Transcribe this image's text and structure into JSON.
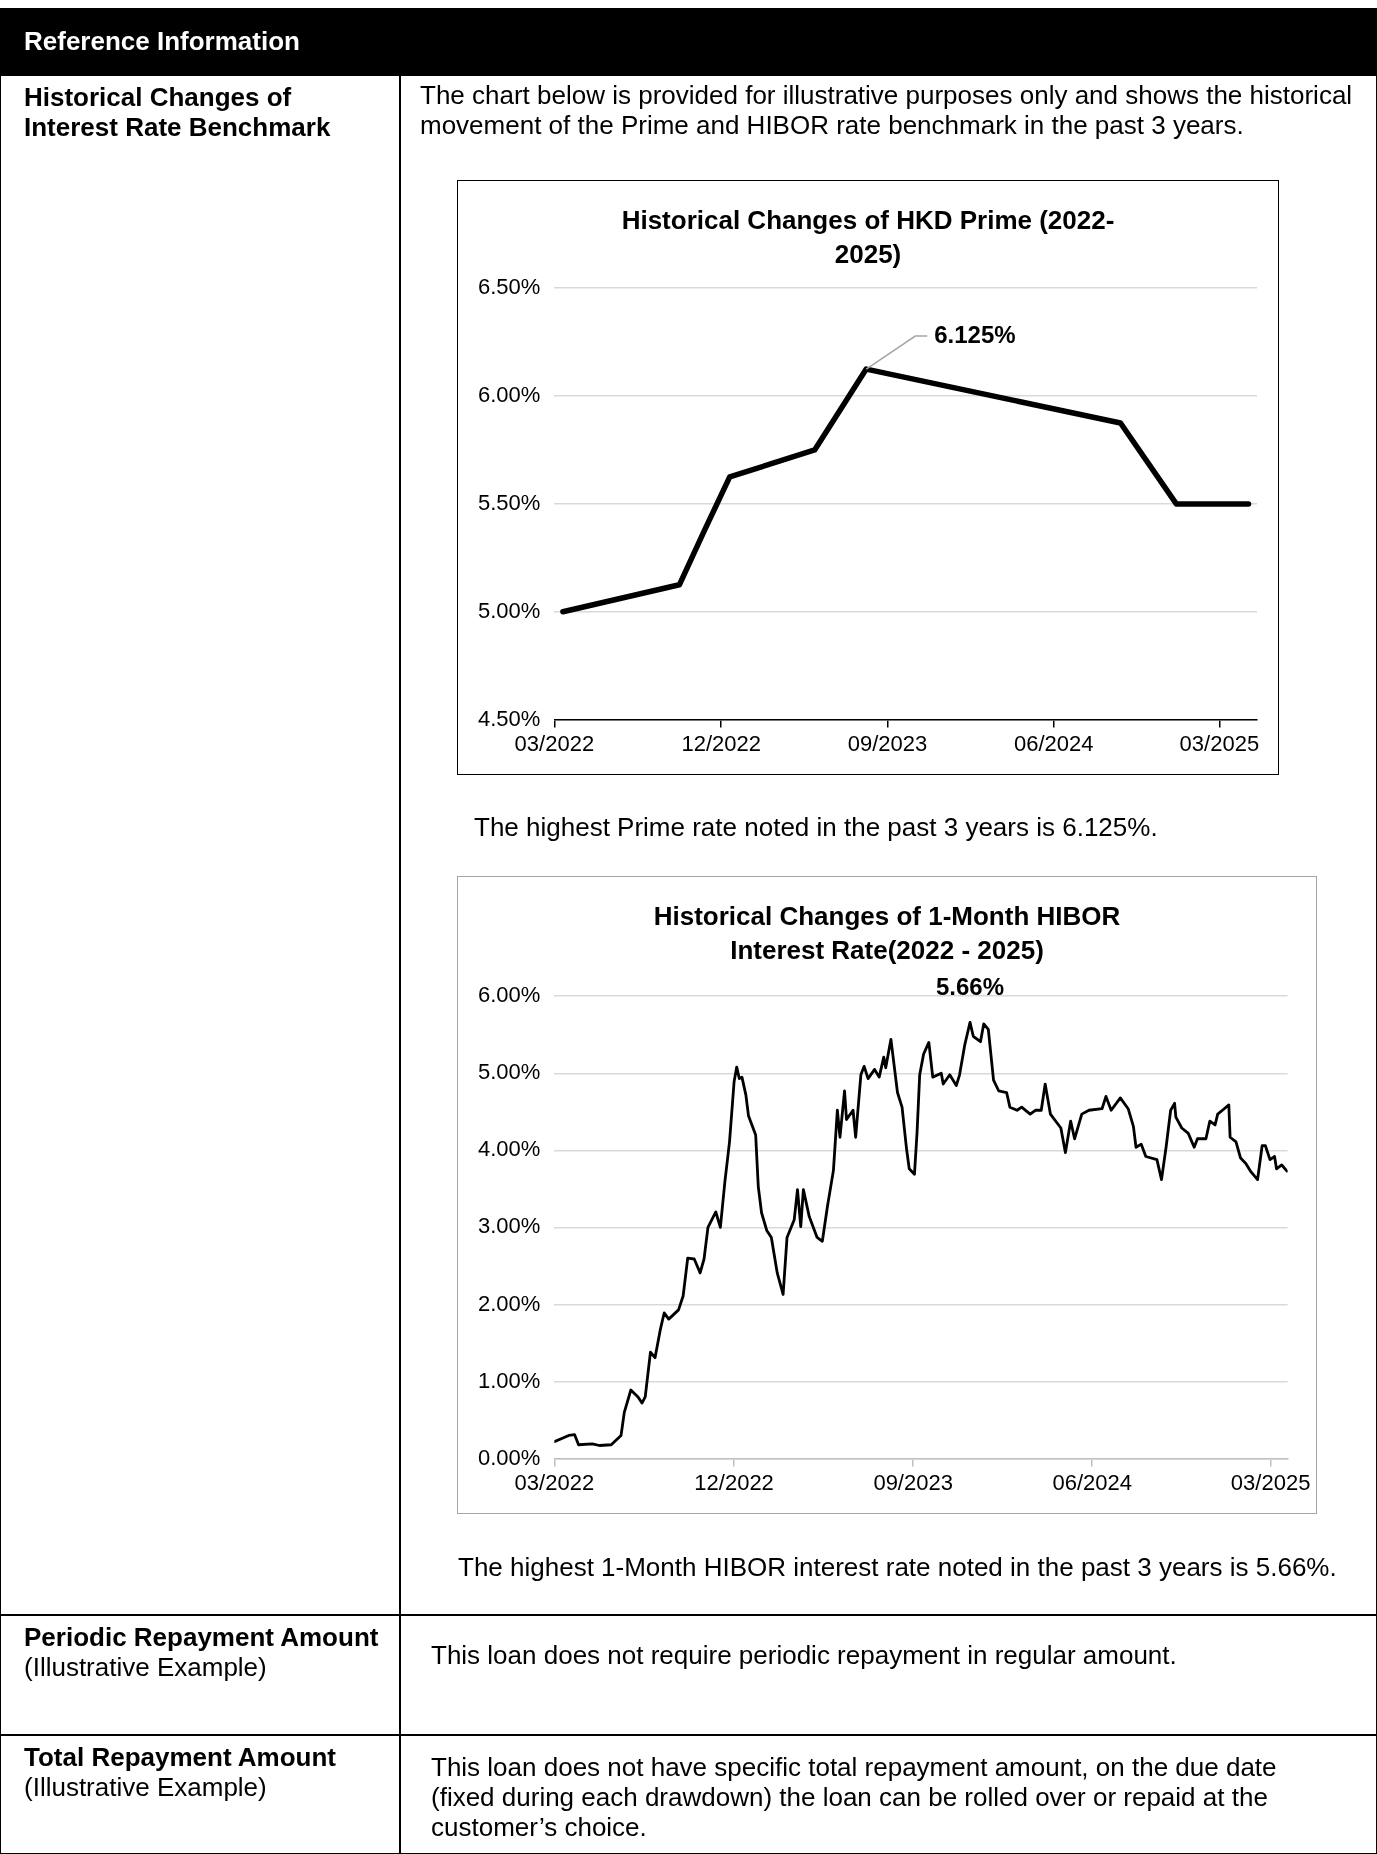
{
  "chart_data": [
    {
      "type": "line",
      "title": "Historical Changes of HKD Prime (2022-2025)",
      "x": [
        "2022-03-15",
        "2022-09-23",
        "2022-11-03",
        "2022-12-15",
        "2023-05-04",
        "2023-07-28",
        "2024-09-19",
        "2024-12-20",
        "2025-04-18"
      ],
      "series": [
        {
          "color": "#000000",
          "values": [
            5.0,
            5.125,
            5.375,
            5.625,
            5.75,
            6.125,
            5.875,
            5.5,
            5.5
          ]
        }
      ],
      "xlim": [
        "2022-03-01",
        "2025-05-02"
      ],
      "xticks": [
        {
          "value": "2022-03-01",
          "label": "03/2022"
        },
        {
          "value": "2022-12-01",
          "label": "12/2022"
        },
        {
          "value": "2023-09-01",
          "label": "09/2023"
        },
        {
          "value": "2024-06-01",
          "label": "06/2024"
        },
        {
          "value": "2025-03-01",
          "label": "03/2025"
        }
      ],
      "ylim": [
        4.5,
        6.5
      ],
      "yticks": [
        {
          "value": 4.5,
          "label": "4.50%"
        },
        {
          "value": 5.0,
          "label": "5.00%"
        },
        {
          "value": 5.5,
          "label": "5.50%"
        },
        {
          "value": 6.0,
          "label": "6.00%"
        },
        {
          "value": 6.5,
          "label": "6.50%"
        }
      ],
      "grid": "y",
      "annotations": [
        "Reference Information",
        "Historical Changes of Interest Rate Benchmark",
        "The chart below is provided for illustrative purposes only and shows the historical movement of the Prime and HIBOR rate benchmark in the past 3 years.",
        {
          "text": "6.125%",
          "x": "2023-07-28",
          "y": 6.125
        },
        "The highest Prime rate noted in the past 3 years is 6.125%."
      ]
    },
    {
      "type": "line",
      "title": "Historical Changes of 1-Month HIBOR Interest Rate(2022 - 2025)",
      "x": [
        "2022-03-01",
        "2022-03-23",
        "2022-04-01",
        "2022-04-07",
        "2022-04-28",
        "2022-05-09",
        "2022-05-27",
        "2022-06-11",
        "2022-06-16",
        "2022-06-26",
        "2022-07-07",
        "2022-07-13",
        "2022-07-18",
        "2022-07-26",
        "2022-08-02",
        "2022-08-10",
        "2022-08-16",
        "2022-08-23",
        "2022-09-07",
        "2022-09-14",
        "2022-09-21",
        "2022-10-01",
        "2022-10-10",
        "2022-10-16",
        "2022-10-22",
        "2022-11-03",
        "2022-11-10",
        "2022-11-17",
        "2022-11-24",
        "2022-12-01",
        "2022-12-05",
        "2022-12-09",
        "2022-12-13",
        "2022-12-19",
        "2022-12-23",
        "2023-01-03",
        "2023-01-07",
        "2023-01-12",
        "2023-01-20",
        "2023-01-27",
        "2023-02-05",
        "2023-02-14",
        "2023-02-20",
        "2023-03-03",
        "2023-03-08",
        "2023-03-13",
        "2023-03-17",
        "2023-03-26",
        "2023-04-07",
        "2023-04-15",
        "2023-04-23",
        "2023-05-02",
        "2023-05-08",
        "2023-05-12",
        "2023-05-19",
        "2023-05-22",
        "2023-06-01",
        "2023-06-05",
        "2023-06-13",
        "2023-06-18",
        "2023-06-24",
        "2023-07-04",
        "2023-07-11",
        "2023-07-18",
        "2023-07-21",
        "2023-07-29",
        "2023-08-08",
        "2023-08-15",
        "2023-08-22",
        "2023-08-26",
        "2023-09-03",
        "2023-09-07",
        "2023-09-11",
        "2023-09-17",
        "2023-09-25",
        "2023-10-01",
        "2023-10-14",
        "2023-10-17",
        "2023-10-27",
        "2023-11-06",
        "2023-11-11",
        "2023-11-19",
        "2023-11-27",
        "2023-12-02",
        "2023-12-13",
        "2023-12-18",
        "2023-12-25",
        "2024-01-02",
        "2024-01-10",
        "2024-01-22",
        "2024-01-27",
        "2024-02-07",
        "2024-02-14",
        "2024-02-27",
        "2024-03-06",
        "2024-03-15",
        "2024-03-21",
        "2024-03-29",
        "2024-04-14",
        "2024-04-21",
        "2024-04-29",
        "2024-05-05",
        "2024-05-16",
        "2024-05-27",
        "2024-06-16",
        "2024-06-22",
        "2024-06-30",
        "2024-07-14",
        "2024-07-26",
        "2024-08-03",
        "2024-08-07",
        "2024-08-15",
        "2024-08-22",
        "2024-09-08",
        "2024-09-15",
        "2024-09-22",
        "2024-09-29",
        "2024-10-05",
        "2024-10-07",
        "2024-10-16",
        "2024-10-26",
        "2024-11-04",
        "2024-11-09",
        "2024-11-22",
        "2024-11-28",
        "2024-12-06",
        "2024-12-10",
        "2024-12-20",
        "2024-12-27",
        "2024-12-29",
        "2025-01-07",
        "2025-01-14",
        "2025-01-22",
        "2025-01-30",
        "2025-02-09",
        "2025-02-16",
        "2025-02-21",
        "2025-02-28",
        "2025-03-07",
        "2025-03-10",
        "2025-03-18",
        "2025-03-26"
      ],
      "series": [
        {
          "color": "#000000",
          "values": [
            0.22,
            0.3,
            0.31,
            0.18,
            0.19,
            0.17,
            0.18,
            0.3,
            0.6,
            0.89,
            0.8,
            0.72,
            0.8,
            1.38,
            1.31,
            1.67,
            1.89,
            1.81,
            1.93,
            2.11,
            2.6,
            2.59,
            2.41,
            2.59,
            3.0,
            3.2,
            3.0,
            3.6,
            4.11,
            4.89,
            5.08,
            4.93,
            4.95,
            4.72,
            4.45,
            4.2,
            3.53,
            3.19,
            2.96,
            2.87,
            2.41,
            2.13,
            2.87,
            3.1,
            3.49,
            3.01,
            3.49,
            3.14,
            2.87,
            2.82,
            3.28,
            3.74,
            4.52,
            4.17,
            4.77,
            4.4,
            4.52,
            4.17,
            4.98,
            5.09,
            4.93,
            5.05,
            4.95,
            5.21,
            5.07,
            5.44,
            4.75,
            4.56,
            4.01,
            3.76,
            3.69,
            4.24,
            4.98,
            5.25,
            5.4,
            4.95,
            5.0,
            4.86,
            4.98,
            4.84,
            4.98,
            5.37,
            5.66,
            5.48,
            5.41,
            5.64,
            5.57,
            4.91,
            4.77,
            4.75,
            4.56,
            4.52,
            4.56,
            4.47,
            4.52,
            4.52,
            4.86,
            4.47,
            4.29,
            3.97,
            4.38,
            4.15,
            4.47,
            4.52,
            4.54,
            4.7,
            4.52,
            4.68,
            4.54,
            4.31,
            4.04,
            4.08,
            3.92,
            3.88,
            3.62,
            4.04,
            4.52,
            4.61,
            4.43,
            4.29,
            4.22,
            4.04,
            4.15,
            4.15,
            4.38,
            4.33,
            4.47,
            4.54,
            4.59,
            4.17,
            4.11,
            3.9,
            3.83,
            3.72,
            3.62,
            4.06,
            4.06,
            3.88,
            3.92,
            3.76,
            3.81,
            3.73
          ]
        }
      ],
      "xlim": [
        "2022-03-01",
        "2025-03-27"
      ],
      "xticks": [
        {
          "value": "2022-03-01",
          "label": "03/2022"
        },
        {
          "value": "2022-12-01",
          "label": "12/2022"
        },
        {
          "value": "2023-09-01",
          "label": "09/2023"
        },
        {
          "value": "2024-06-01",
          "label": "06/2024"
        },
        {
          "value": "2025-03-01",
          "label": "03/2025"
        }
      ],
      "ylim": [
        0,
        6
      ],
      "yticks": [
        {
          "value": 0,
          "label": "0.00%"
        },
        {
          "value": 1,
          "label": "1.00%"
        },
        {
          "value": 2,
          "label": "2.00%"
        },
        {
          "value": 3,
          "label": "3.00%"
        },
        {
          "value": 4,
          "label": "4.00%"
        },
        {
          "value": 5,
          "label": "5.00%"
        },
        {
          "value": 6,
          "label": "6.00%"
        }
      ],
      "grid": "y",
      "annotations": [
        {
          "text": "5.66%",
          "x": "2023-11-27",
          "y": 5.66
        },
        "The highest 1-Month HIBOR interest rate noted in the past 3 years is 5.66%.",
        "Periodic Repayment Amount",
        "(Illustrative Example)",
        "This loan does not require periodic repayment in regular amount.",
        "Total Repayment Amount",
        "(Illustrative Example)",
        "This loan does not have specific total repayment amount, on the due date (fixed during each drawdown) the loan can be rolled over or repaid at the customer’s choice."
      ]
    }
  ]
}
